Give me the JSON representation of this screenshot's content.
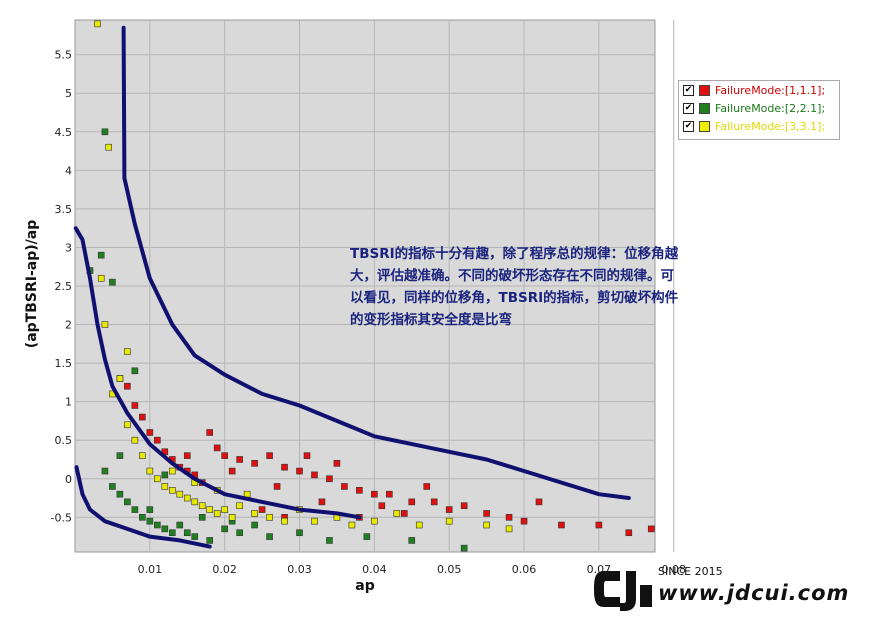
{
  "chart_data": {
    "type": "scatter",
    "xlabel": "ap",
    "ylabel": "(apTBSRI-ap)/ap",
    "xlim": [
      0,
      0.0775
    ],
    "ylim": [
      -0.95,
      5.95
    ],
    "x_ticks": [
      "0.01",
      "0.02",
      "0.03",
      "0.04",
      "0.05",
      "0.06",
      "0.07",
      "0.08"
    ],
    "x_tick_values": [
      0.01,
      0.02,
      0.03,
      0.04,
      0.05,
      0.06,
      0.07,
      0.08
    ],
    "y_ticks": [
      "-0.5",
      "0",
      "0.5",
      "1",
      "1.5",
      "2",
      "2.5",
      "3",
      "3.5",
      "4",
      "4.5",
      "5",
      "5.5"
    ],
    "y_tick_values": [
      -0.5,
      0,
      0.5,
      1,
      1.5,
      2,
      2.5,
      3,
      3.5,
      4,
      4.5,
      5,
      5.5
    ],
    "grid": true,
    "legend_position": "right",
    "series": [
      {
        "name": "FailureMode:[1,1.1];",
        "color": "#e01010",
        "points": [
          [
            0.006,
            1.3
          ],
          [
            0.007,
            1.2
          ],
          [
            0.008,
            0.95
          ],
          [
            0.009,
            0.8
          ],
          [
            0.01,
            0.6
          ],
          [
            0.011,
            0.5
          ],
          [
            0.012,
            0.35
          ],
          [
            0.013,
            0.25
          ],
          [
            0.014,
            0.15
          ],
          [
            0.015,
            0.1
          ],
          [
            0.016,
            0.05
          ],
          [
            0.017,
            -0.05
          ],
          [
            0.018,
            0.6
          ],
          [
            0.019,
            0.4
          ],
          [
            0.02,
            0.3
          ],
          [
            0.022,
            0.25
          ],
          [
            0.024,
            0.2
          ],
          [
            0.026,
            0.3
          ],
          [
            0.028,
            0.15
          ],
          [
            0.03,
            0.1
          ],
          [
            0.032,
            0.05
          ],
          [
            0.034,
            0.0
          ],
          [
            0.036,
            -0.1
          ],
          [
            0.038,
            -0.15
          ],
          [
            0.04,
            -0.2
          ],
          [
            0.042,
            -0.2
          ],
          [
            0.045,
            -0.3
          ],
          [
            0.048,
            -0.3
          ],
          [
            0.05,
            -0.4
          ],
          [
            0.055,
            -0.45
          ],
          [
            0.058,
            -0.5
          ],
          [
            0.06,
            -0.55
          ],
          [
            0.065,
            -0.6
          ],
          [
            0.07,
            -0.6
          ],
          [
            0.074,
            -0.7
          ],
          [
            0.077,
            -0.65
          ],
          [
            0.025,
            -0.4
          ],
          [
            0.028,
            -0.5
          ],
          [
            0.033,
            -0.3
          ],
          [
            0.038,
            -0.5
          ],
          [
            0.044,
            -0.45
          ],
          [
            0.052,
            -0.35
          ],
          [
            0.062,
            -0.3
          ],
          [
            0.015,
            0.3
          ],
          [
            0.021,
            0.1
          ],
          [
            0.027,
            -0.1
          ],
          [
            0.031,
            0.3
          ],
          [
            0.035,
            0.2
          ],
          [
            0.041,
            -0.35
          ],
          [
            0.047,
            -0.1
          ]
        ]
      },
      {
        "name": "FailureMode:[2,2.1];",
        "color": "#208020",
        "points": [
          [
            0.004,
            4.5
          ],
          [
            0.0035,
            2.9
          ],
          [
            0.002,
            2.7
          ],
          [
            0.005,
            2.55
          ],
          [
            0.008,
            1.4
          ],
          [
            0.006,
            0.3
          ],
          [
            0.004,
            0.1
          ],
          [
            0.005,
            -0.1
          ],
          [
            0.006,
            -0.2
          ],
          [
            0.007,
            -0.3
          ],
          [
            0.008,
            -0.4
          ],
          [
            0.009,
            -0.5
          ],
          [
            0.01,
            -0.55
          ],
          [
            0.011,
            -0.6
          ],
          [
            0.012,
            -0.65
          ],
          [
            0.013,
            -0.7
          ],
          [
            0.014,
            -0.6
          ],
          [
            0.015,
            -0.7
          ],
          [
            0.016,
            -0.75
          ],
          [
            0.018,
            -0.8
          ],
          [
            0.02,
            -0.65
          ],
          [
            0.022,
            -0.7
          ],
          [
            0.024,
            -0.6
          ],
          [
            0.026,
            -0.75
          ],
          [
            0.03,
            -0.7
          ],
          [
            0.034,
            -0.8
          ],
          [
            0.039,
            -0.75
          ],
          [
            0.045,
            -0.8
          ],
          [
            0.052,
            -0.9
          ],
          [
            0.012,
            0.05
          ],
          [
            0.01,
            -0.4
          ],
          [
            0.017,
            -0.5
          ],
          [
            0.021,
            -0.55
          ]
        ]
      },
      {
        "name": "FailureMode:[3,3.1];",
        "color": "#e8e800",
        "points": [
          [
            0.003,
            5.9
          ],
          [
            0.0045,
            4.3
          ],
          [
            0.004,
            2.0
          ],
          [
            0.0035,
            2.6
          ],
          [
            0.007,
            1.65
          ],
          [
            0.006,
            1.3
          ],
          [
            0.005,
            1.1
          ],
          [
            0.007,
            0.7
          ],
          [
            0.008,
            0.5
          ],
          [
            0.009,
            0.3
          ],
          [
            0.01,
            0.1
          ],
          [
            0.011,
            0.0
          ],
          [
            0.012,
            -0.1
          ],
          [
            0.013,
            -0.15
          ],
          [
            0.014,
            -0.2
          ],
          [
            0.015,
            -0.25
          ],
          [
            0.016,
            -0.3
          ],
          [
            0.017,
            -0.35
          ],
          [
            0.018,
            -0.4
          ],
          [
            0.019,
            -0.45
          ],
          [
            0.02,
            -0.4
          ],
          [
            0.021,
            -0.5
          ],
          [
            0.022,
            -0.35
          ],
          [
            0.024,
            -0.45
          ],
          [
            0.026,
            -0.5
          ],
          [
            0.028,
            -0.55
          ],
          [
            0.03,
            -0.4
          ],
          [
            0.032,
            -0.55
          ],
          [
            0.035,
            -0.5
          ],
          [
            0.037,
            -0.6
          ],
          [
            0.04,
            -0.55
          ],
          [
            0.043,
            -0.45
          ],
          [
            0.046,
            -0.6
          ],
          [
            0.05,
            -0.55
          ],
          [
            0.055,
            -0.6
          ],
          [
            0.058,
            -0.65
          ],
          [
            0.013,
            0.1
          ],
          [
            0.016,
            -0.05
          ],
          [
            0.019,
            -0.15
          ],
          [
            0.023,
            -0.2
          ]
        ]
      }
    ],
    "annotations": [
      {
        "text": "TBSRI的指标十分有趣，除了程序总的规律：位移角越大，评估越准确。不同的破坏形态存在不同的规律。可以看见，同样的位移角，TBSRI的指标，剪切破坏构件的变形指标其安全度是比弯"
      }
    ],
    "boundary_curves": [
      {
        "color": "#101070",
        "points": [
          [
            0.0065,
            5.85
          ],
          [
            0.0066,
            3.9
          ],
          [
            0.008,
            3.3
          ],
          [
            0.01,
            2.6
          ],
          [
            0.013,
            2.0
          ],
          [
            0.016,
            1.6
          ],
          [
            0.02,
            1.35
          ],
          [
            0.025,
            1.1
          ],
          [
            0.03,
            0.95
          ],
          [
            0.035,
            0.75
          ],
          [
            0.04,
            0.55
          ],
          [
            0.045,
            0.45
          ],
          [
            0.05,
            0.35
          ],
          [
            0.055,
            0.25
          ],
          [
            0.06,
            0.1
          ],
          [
            0.065,
            -0.05
          ],
          [
            0.07,
            -0.2
          ],
          [
            0.074,
            -0.25
          ]
        ]
      },
      {
        "color": "#101070",
        "points": [
          [
            0.0001,
            3.25
          ],
          [
            0.001,
            3.1
          ],
          [
            0.002,
            2.6
          ],
          [
            0.003,
            2.0
          ],
          [
            0.004,
            1.55
          ],
          [
            0.005,
            1.2
          ],
          [
            0.007,
            0.85
          ],
          [
            0.01,
            0.45
          ],
          [
            0.013,
            0.2
          ],
          [
            0.016,
            0.0
          ],
          [
            0.02,
            -0.2
          ],
          [
            0.025,
            -0.3
          ],
          [
            0.03,
            -0.4
          ],
          [
            0.035,
            -0.45
          ],
          [
            0.038,
            -0.5
          ]
        ]
      },
      {
        "color": "#101070",
        "points": [
          [
            0.0002,
            0.15
          ],
          [
            0.001,
            -0.2
          ],
          [
            0.002,
            -0.4
          ],
          [
            0.004,
            -0.55
          ],
          [
            0.007,
            -0.65
          ],
          [
            0.01,
            -0.75
          ],
          [
            0.014,
            -0.8
          ],
          [
            0.018,
            -0.88
          ]
        ]
      }
    ]
  },
  "legend": {
    "items": [
      {
        "label": "FailureMode:[1,1.1];",
        "color": "#e01010",
        "text_color": "#cc0000"
      },
      {
        "label": "FailureMode:[2,2.1];",
        "color": "#208020",
        "text_color": "#1a7a1a"
      },
      {
        "label": "FailureMode:[3,3.1];",
        "color": "#f0f000",
        "text_color": "#e8e000"
      }
    ]
  },
  "watermark": {
    "since": "SINCE 2015",
    "url": "www.jdcui.com",
    "logo": "CJ"
  }
}
